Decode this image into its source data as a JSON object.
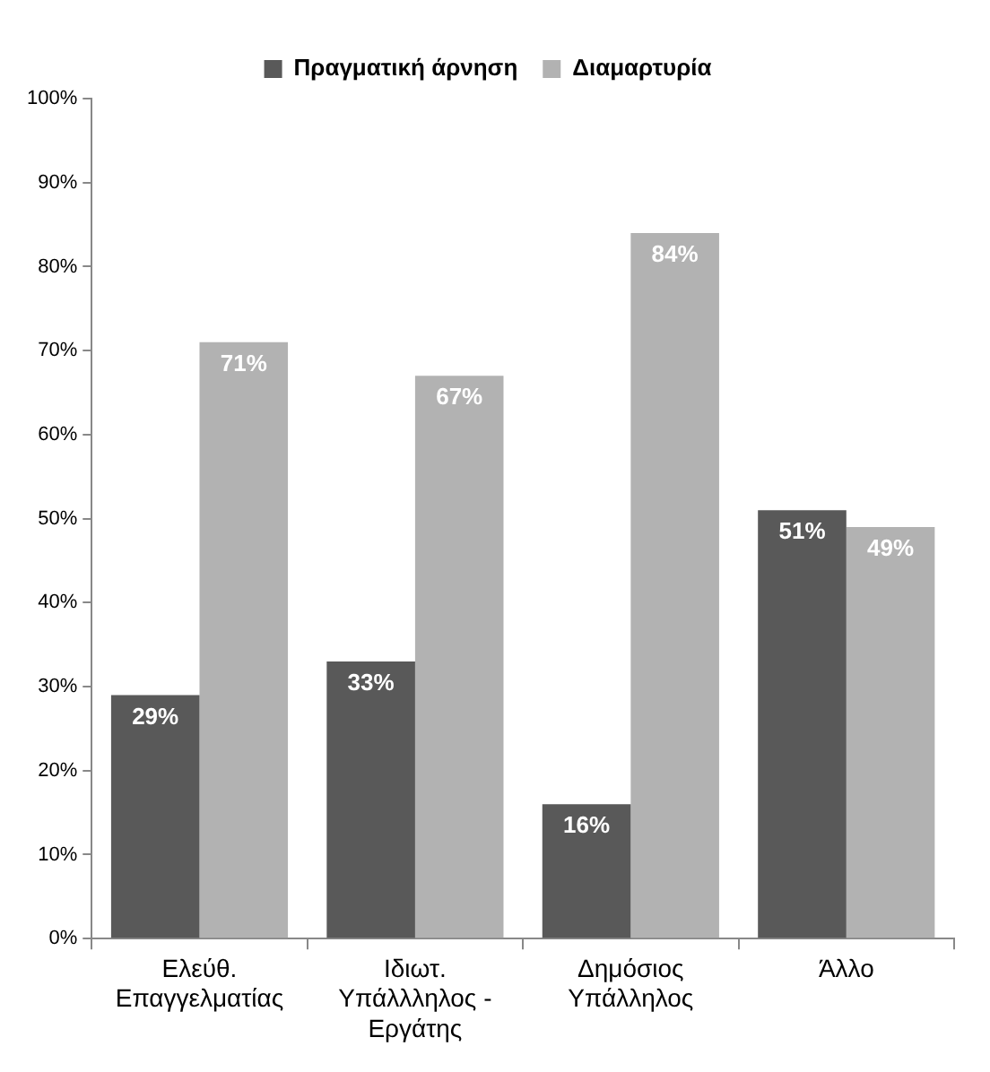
{
  "chart_data": {
    "type": "bar",
    "categories": [
      "Ελεύθ. Επαγγελματίας",
      "Ιδιωτ. Υπάλλληλος - Εργάτης",
      "Δημόσιος Υπάλληλος",
      "Άλλο"
    ],
    "series": [
      {
        "name": "Πραγματική άρνηση",
        "color": "#595959",
        "values": [
          29,
          33,
          16,
          51
        ],
        "value_labels": [
          "29%",
          "33%",
          "16%",
          "51%"
        ]
      },
      {
        "name": "Διαμαρτυρία",
        "color": "#b2b2b2",
        "values": [
          71,
          67,
          84,
          49
        ],
        "value_labels": [
          "71%",
          "67%",
          "84%",
          "49%"
        ]
      }
    ],
    "ylim": [
      0,
      100
    ],
    "yticks": [
      {
        "value": 0,
        "label": "0%"
      },
      {
        "value": 10,
        "label": "10%"
      },
      {
        "value": 20,
        "label": "20%"
      },
      {
        "value": 30,
        "label": "30%"
      },
      {
        "value": 40,
        "label": "40%"
      },
      {
        "value": 50,
        "label": "50%"
      },
      {
        "value": 60,
        "label": "60%"
      },
      {
        "value": 70,
        "label": "70%"
      },
      {
        "value": 80,
        "label": "80%"
      },
      {
        "value": 90,
        "label": "90%"
      },
      {
        "value": 100,
        "label": "100%"
      }
    ],
    "grid": false,
    "legend": "top"
  }
}
